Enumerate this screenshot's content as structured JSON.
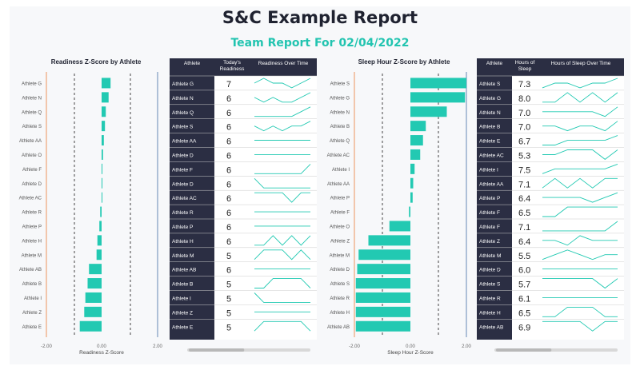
{
  "report": {
    "title": "S&C Example Report",
    "subtitle": "Team Report For 02/04/2022"
  },
  "colors": {
    "bar": "#22c9b2",
    "line": "#22c9b2",
    "header": "#2b2e43",
    "orange": "#f0a577",
    "blue": "#7e9cc0"
  },
  "chart_data": [
    {
      "type": "bar",
      "orientation": "horizontal",
      "title": "Readiness Z-Score by Athlete",
      "xlabel": "Readiness Z-Score",
      "ylabel": "",
      "xlim": [
        -2.0,
        2.0
      ],
      "x_ticks": [
        "-2.00",
        "0.00",
        "2.00"
      ],
      "categories": [
        "Athlete G",
        "Athlete N",
        "Athlete Q",
        "Athlete S",
        "Athlete AA",
        "Athlete O",
        "Athlete F",
        "Athlete D",
        "Athlete AC",
        "Athlete R",
        "Athlete P",
        "Athlete H",
        "Athlete M",
        "Athlete AB",
        "Athlete B",
        "Athlete I",
        "Athlete Z",
        "Athlete E"
      ],
      "values": [
        0.32,
        0.25,
        0.15,
        0.12,
        0.08,
        0.05,
        0.02,
        0.01,
        0.0,
        -0.05,
        -0.08,
        -0.15,
        -0.18,
        -0.45,
        -0.5,
        -0.58,
        -0.62,
        -0.78
      ]
    },
    {
      "type": "table",
      "columns": [
        "Athlete",
        "Today's Readiness",
        "Readiness Over Time"
      ],
      "rows": [
        {
          "athlete": "Athlete G",
          "value": "7",
          "trend": [
            5,
            6,
            5,
            5,
            4,
            5,
            6
          ]
        },
        {
          "athlete": "Athlete N",
          "value": "6",
          "trend": [
            5,
            4,
            5,
            4,
            4,
            5,
            6
          ]
        },
        {
          "athlete": "Athlete Q",
          "value": "6",
          "trend": [
            5,
            5,
            5,
            5,
            5,
            6,
            7
          ]
        },
        {
          "athlete": "Athlete S",
          "value": "6",
          "trend": [
            6,
            5,
            6,
            5,
            6,
            6,
            7
          ]
        },
        {
          "athlete": "Athlete AA",
          "value": "6",
          "trend": [
            5,
            5,
            5,
            5,
            5,
            5,
            5
          ]
        },
        {
          "athlete": "Athlete D",
          "value": "6",
          "trend": [
            5,
            5,
            5,
            5,
            5,
            5,
            5
          ]
        },
        {
          "athlete": "Athlete F",
          "value": "6",
          "trend": [
            5,
            5,
            5,
            5,
            5,
            5,
            6
          ]
        },
        {
          "athlete": "Athlete D",
          "value": "6",
          "trend": [
            6,
            5,
            5,
            5,
            5,
            5,
            5
          ]
        },
        {
          "athlete": "Athlete AC",
          "value": "6",
          "trend": [
            6,
            6,
            6,
            6,
            5,
            6,
            6
          ]
        },
        {
          "athlete": "Athlete R",
          "value": "6",
          "trend": [
            5,
            5,
            5,
            5,
            5,
            5,
            5
          ]
        },
        {
          "athlete": "Athlete P",
          "value": "6",
          "trend": [
            6,
            6,
            6,
            6,
            6,
            6,
            6
          ]
        },
        {
          "athlete": "Athlete H",
          "value": "6",
          "trend": [
            5,
            5,
            6,
            5,
            6,
            5,
            6
          ]
        },
        {
          "athlete": "Athlete M",
          "value": "5",
          "trend": [
            5,
            6,
            6,
            6,
            5,
            6,
            5
          ]
        },
        {
          "athlete": "Athlete AB",
          "value": "6",
          "trend": [
            5,
            5,
            5,
            5,
            5,
            5,
            5
          ]
        },
        {
          "athlete": "Athlete B",
          "value": "5",
          "trend": [
            5,
            5,
            6,
            6,
            6,
            6,
            5
          ]
        },
        {
          "athlete": "Athlete I",
          "value": "5",
          "trend": [
            6,
            5,
            5,
            5,
            5,
            5,
            5
          ]
        },
        {
          "athlete": "Athlete Z",
          "value": "5",
          "trend": [
            5,
            5,
            5,
            5,
            5,
            5,
            5
          ]
        },
        {
          "athlete": "Athlete E",
          "value": "5",
          "trend": [
            5,
            6,
            6,
            6,
            6,
            6,
            5
          ]
        }
      ]
    },
    {
      "type": "bar",
      "orientation": "horizontal",
      "title": "Sleep Hour Z-Score by Athlete",
      "xlabel": "Sleep Hour Z-Score",
      "ylabel": "",
      "xlim": [
        -2.0,
        2.0
      ],
      "x_ticks": [
        "-2.00",
        "0.00",
        "2.00"
      ],
      "categories": [
        "Athlete S",
        "Athlete G",
        "Athlete N",
        "Athlete B",
        "Athlete Q",
        "Athlete AC",
        "Athlete I",
        "Athlete AA",
        "Athlete P",
        "Athlete F",
        "Athlete O",
        "Athlete Z",
        "Athlete M",
        "Athlete D",
        "Athlete S",
        "Athlete R",
        "Athlete H",
        "Athlete AB"
      ],
      "values": [
        2.0,
        1.95,
        1.3,
        0.55,
        0.45,
        0.35,
        0.15,
        0.1,
        0.08,
        -0.05,
        -0.75,
        -1.5,
        -1.85,
        -1.9,
        -1.95,
        -1.95,
        -1.95,
        -1.95
      ]
    },
    {
      "type": "table",
      "columns": [
        "Athlete",
        "Hours of Sleep",
        "Hours of Sleep Over Time"
      ],
      "rows": [
        {
          "athlete": "Athlete S",
          "value": "7.3",
          "trend": [
            6,
            7,
            7,
            6,
            7,
            7,
            8
          ]
        },
        {
          "athlete": "Athlete G",
          "value": "8.0",
          "trend": [
            7,
            7,
            8,
            7,
            8,
            7,
            8
          ]
        },
        {
          "athlete": "Athlete N",
          "value": "7.0",
          "trend": [
            7,
            7,
            7,
            7,
            7,
            6,
            8
          ]
        },
        {
          "athlete": "Athlete B",
          "value": "7.0",
          "trend": [
            7,
            7,
            6,
            7,
            7,
            6,
            8
          ]
        },
        {
          "athlete": "Athlete E",
          "value": "6.7",
          "trend": [
            6,
            6,
            7,
            7,
            7,
            7,
            8
          ]
        },
        {
          "athlete": "Athlete AC",
          "value": "5.3",
          "trend": [
            6,
            6,
            7,
            7,
            7,
            5,
            7
          ]
        },
        {
          "athlete": "Athlete I",
          "value": "7.5",
          "trend": [
            6,
            7,
            7,
            7,
            7,
            7,
            8
          ]
        },
        {
          "athlete": "Athlete AA",
          "value": "7.1",
          "trend": [
            6,
            7,
            6,
            7,
            6,
            7,
            7
          ]
        },
        {
          "athlete": "Athlete P",
          "value": "6.4",
          "trend": [
            7,
            7,
            7,
            7,
            6,
            7,
            8
          ]
        },
        {
          "athlete": "Athlete F",
          "value": "6.5",
          "trend": [
            6,
            6,
            7,
            7,
            7,
            7,
            7
          ]
        },
        {
          "athlete": "Athlete F",
          "value": "7.1",
          "trend": [
            7,
            7,
            7,
            7,
            7,
            7,
            8
          ]
        },
        {
          "athlete": "Athlete Z",
          "value": "6.4",
          "trend": [
            7,
            7,
            6,
            8,
            7,
            7,
            7
          ]
        },
        {
          "athlete": "Athlete M",
          "value": "5.5",
          "trend": [
            6,
            7,
            8,
            7,
            6,
            7,
            7
          ]
        },
        {
          "athlete": "Athlete D",
          "value": "6.0",
          "trend": [
            7,
            7,
            7,
            7,
            7,
            7,
            7
          ]
        },
        {
          "athlete": "Athlete S",
          "value": "5.7",
          "trend": [
            7,
            7,
            7,
            7,
            7,
            6,
            7
          ]
        },
        {
          "athlete": "Athlete R",
          "value": "6.1",
          "trend": [
            7,
            7,
            7,
            7,
            7,
            7,
            7
          ]
        },
        {
          "athlete": "Athlete H",
          "value": "6.5",
          "trend": [
            7,
            7,
            8,
            8,
            8,
            7,
            7
          ]
        },
        {
          "athlete": "Athlete AB",
          "value": "6.9",
          "trend": [
            7,
            7,
            7,
            7,
            6,
            7,
            7
          ]
        }
      ]
    }
  ]
}
